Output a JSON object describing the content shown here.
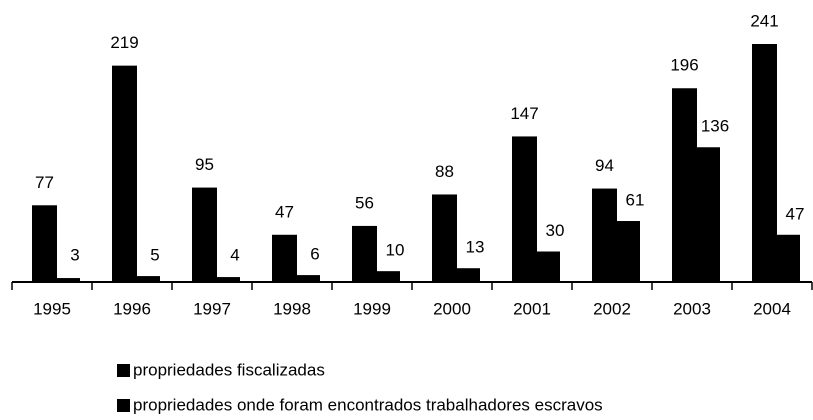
{
  "chart_data": {
    "type": "bar",
    "categories": [
      "1995",
      "1996",
      "1997",
      "1998",
      "1999",
      "2000",
      "2001",
      "2002",
      "2003",
      "2004"
    ],
    "series": [
      {
        "name": "propriedades fiscalizadas",
        "color": "#000000",
        "values": [
          77,
          219,
          95,
          47,
          56,
          88,
          147,
          94,
          196,
          241
        ]
      },
      {
        "name": "propriedades onde foram encontrados trabalhadores escravos",
        "color": "#000000",
        "values": [
          3,
          5,
          4,
          6,
          10,
          13,
          30,
          61,
          136,
          47
        ]
      }
    ]
  }
}
